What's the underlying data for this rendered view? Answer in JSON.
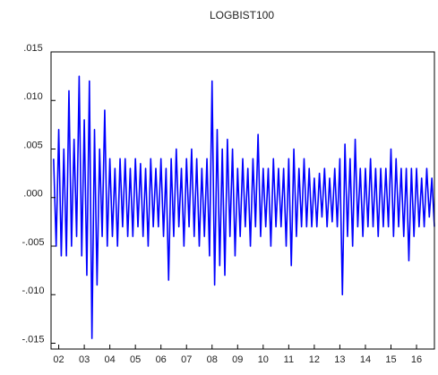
{
  "chart_data": {
    "type": "line",
    "title": "LOGBIST100",
    "color": "#0000ff",
    "x": [
      2001.8,
      2001.9,
      2002.0,
      2002.1,
      2002.2,
      2002.3,
      2002.4,
      2002.5,
      2002.6,
      2002.7,
      2002.8,
      2002.9,
      2003.0,
      2003.1,
      2003.2,
      2003.3,
      2003.4,
      2003.5,
      2003.6,
      2003.7,
      2003.8,
      2003.9,
      2004.0,
      2004.1,
      2004.2,
      2004.3,
      2004.4,
      2004.5,
      2004.6,
      2004.7,
      2004.8,
      2004.9,
      2005.0,
      2005.1,
      2005.2,
      2005.3,
      2005.4,
      2005.5,
      2005.6,
      2005.7,
      2005.8,
      2005.9,
      2006.0,
      2006.1,
      2006.2,
      2006.3,
      2006.4,
      2006.5,
      2006.6,
      2006.7,
      2006.8,
      2006.9,
      2007.0,
      2007.1,
      2007.2,
      2007.3,
      2007.4,
      2007.5,
      2007.6,
      2007.7,
      2007.8,
      2007.9,
      2008.0,
      2008.1,
      2008.2,
      2008.3,
      2008.4,
      2008.5,
      2008.6,
      2008.7,
      2008.8,
      2008.9,
      2009.0,
      2009.1,
      2009.2,
      2009.3,
      2009.4,
      2009.5,
      2009.6,
      2009.7,
      2009.8,
      2009.9,
      2010.0,
      2010.1,
      2010.2,
      2010.3,
      2010.4,
      2010.5,
      2010.6,
      2010.7,
      2010.8,
      2010.9,
      2011.0,
      2011.1,
      2011.2,
      2011.3,
      2011.4,
      2011.5,
      2011.6,
      2011.7,
      2011.8,
      2011.9,
      2012.0,
      2012.1,
      2012.2,
      2012.3,
      2012.4,
      2012.5,
      2012.6,
      2012.7,
      2012.8,
      2012.9,
      2013.0,
      2013.1,
      2013.2,
      2013.3,
      2013.4,
      2013.5,
      2013.6,
      2013.7,
      2013.8,
      2013.9,
      2014.0,
      2014.1,
      2014.2,
      2014.3,
      2014.4,
      2014.5,
      2014.6,
      2014.7,
      2014.8,
      2014.9,
      2015.0,
      2015.1,
      2015.2,
      2015.3,
      2015.4,
      2015.5,
      2015.6,
      2015.7,
      2015.8,
      2015.9,
      2016.0,
      2016.1,
      2016.2,
      2016.3,
      2016.4,
      2016.5,
      2016.6,
      2016.7
    ],
    "values": [
      0.004,
      -0.005,
      0.007,
      -0.006,
      0.005,
      -0.006,
      0.011,
      -0.005,
      0.006,
      -0.004,
      0.0125,
      -0.006,
      0.008,
      -0.008,
      0.012,
      -0.0145,
      0.007,
      -0.009,
      0.005,
      -0.004,
      0.009,
      -0.005,
      0.004,
      -0.004,
      0.003,
      -0.005,
      0.004,
      -0.003,
      0.004,
      -0.004,
      0.003,
      -0.004,
      0.004,
      -0.003,
      0.0035,
      -0.004,
      0.003,
      -0.005,
      0.004,
      -0.003,
      0.003,
      -0.003,
      0.004,
      -0.004,
      0.003,
      -0.0085,
      0.004,
      -0.004,
      0.005,
      -0.003,
      0.003,
      -0.005,
      0.004,
      -0.003,
      0.005,
      -0.004,
      0.004,
      -0.005,
      0.003,
      -0.004,
      0.004,
      -0.006,
      0.012,
      -0.009,
      0.007,
      -0.007,
      0.005,
      -0.008,
      0.006,
      -0.004,
      0.005,
      -0.006,
      0.003,
      -0.004,
      0.004,
      -0.003,
      0.003,
      -0.005,
      0.004,
      -0.003,
      0.0065,
      -0.004,
      0.003,
      -0.003,
      0.003,
      -0.005,
      0.004,
      -0.003,
      0.003,
      -0.003,
      0.003,
      -0.005,
      0.004,
      -0.007,
      0.005,
      -0.004,
      0.003,
      -0.003,
      0.004,
      -0.003,
      0.003,
      -0.003,
      0.002,
      -0.003,
      0.0025,
      -0.002,
      0.003,
      -0.003,
      0.002,
      -0.0025,
      0.003,
      -0.003,
      0.004,
      -0.01,
      0.0055,
      -0.004,
      0.004,
      -0.005,
      0.006,
      -0.003,
      0.003,
      -0.004,
      0.003,
      -0.003,
      0.004,
      -0.003,
      0.003,
      -0.004,
      0.003,
      -0.003,
      0.003,
      -0.003,
      0.005,
      -0.004,
      0.004,
      -0.003,
      0.003,
      -0.004,
      0.003,
      -0.0065,
      0.003,
      -0.004,
      0.003,
      -0.003,
      0.002,
      -0.003,
      0.003,
      -0.002,
      0.002,
      -0.003
    ],
    "xlim": [
      2001.7,
      2016.7
    ],
    "xticks": [
      {
        "value": 2002,
        "label": "02"
      },
      {
        "value": 2003,
        "label": "03"
      },
      {
        "value": 2004,
        "label": "04"
      },
      {
        "value": 2005,
        "label": "05"
      },
      {
        "value": 2006,
        "label": "06"
      },
      {
        "value": 2007,
        "label": "07"
      },
      {
        "value": 2008,
        "label": "08"
      },
      {
        "value": 2009,
        "label": "09"
      },
      {
        "value": 2010,
        "label": "10"
      },
      {
        "value": 2011,
        "label": "11"
      },
      {
        "value": 2012,
        "label": "12"
      },
      {
        "value": 2013,
        "label": "13"
      },
      {
        "value": 2014,
        "label": "14"
      },
      {
        "value": 2015,
        "label": "15"
      },
      {
        "value": 2016,
        "label": "16"
      }
    ],
    "ylim": [
      -0.0156,
      0.015
    ],
    "yticks": [
      {
        "value": -0.015,
        "label": "-.015"
      },
      {
        "value": -0.01,
        "label": "-.010"
      },
      {
        "value": -0.005,
        "label": "-.005"
      },
      {
        "value": 0,
        "label": ".000"
      },
      {
        "value": 0.005,
        "label": ".005"
      },
      {
        "value": 0.01,
        "label": ".010"
      },
      {
        "value": 0.015,
        "label": ".015"
      }
    ],
    "grid": false
  }
}
